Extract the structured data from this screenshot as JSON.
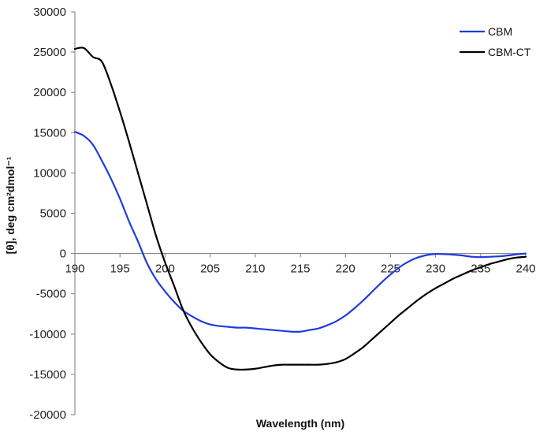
{
  "chart_data": {
    "type": "line",
    "xlabel": "Wavelength (nm)",
    "ylabel": "[θ], deg cm²dmol⁻¹",
    "xlim": [
      190,
      240
    ],
    "ylim": [
      -20000,
      30000
    ],
    "x_ticks": [
      "190",
      "195",
      "200",
      "205",
      "210",
      "215",
      "220",
      "225",
      "230",
      "235",
      "240"
    ],
    "y_ticks": [
      "30000",
      "25000",
      "20000",
      "15000",
      "10000",
      "5000",
      "0",
      "-5000",
      "-10000",
      "-15000",
      "-20000"
    ],
    "grid": false,
    "legend_position": "top-right",
    "series": [
      {
        "name": "CBM",
        "color": "#1f3be0",
        "points": [
          [
            190,
            15100
          ],
          [
            191,
            14600
          ],
          [
            192,
            13500
          ],
          [
            193,
            11500
          ],
          [
            194,
            9300
          ],
          [
            195,
            6800
          ],
          [
            196,
            4000
          ],
          [
            197,
            1500
          ],
          [
            198,
            -1200
          ],
          [
            199,
            -3200
          ],
          [
            200,
            -4700
          ],
          [
            201,
            -6000
          ],
          [
            202,
            -7100
          ],
          [
            203,
            -7800
          ],
          [
            204,
            -8400
          ],
          [
            205,
            -8800
          ],
          [
            206,
            -9000
          ],
          [
            207,
            -9100
          ],
          [
            208,
            -9200
          ],
          [
            209,
            -9200
          ],
          [
            210,
            -9300
          ],
          [
            211,
            -9400
          ],
          [
            212,
            -9500
          ],
          [
            213,
            -9600
          ],
          [
            214,
            -9700
          ],
          [
            215,
            -9700
          ],
          [
            216,
            -9500
          ],
          [
            217,
            -9300
          ],
          [
            218,
            -8900
          ],
          [
            219,
            -8400
          ],
          [
            220,
            -7700
          ],
          [
            221,
            -6800
          ],
          [
            222,
            -5800
          ],
          [
            223,
            -4700
          ],
          [
            224,
            -3600
          ],
          [
            225,
            -2600
          ],
          [
            226,
            -1700
          ],
          [
            227,
            -1000
          ],
          [
            228,
            -500
          ],
          [
            229,
            -200
          ],
          [
            230,
            -50
          ],
          [
            231,
            -80
          ],
          [
            232,
            -150
          ],
          [
            233,
            -250
          ],
          [
            234,
            -400
          ],
          [
            235,
            -450
          ],
          [
            236,
            -400
          ],
          [
            237,
            -350
          ],
          [
            238,
            -250
          ],
          [
            239,
            -100
          ],
          [
            240,
            0
          ]
        ]
      },
      {
        "name": "CBM-CT",
        "color": "#000000",
        "points": [
          [
            190,
            25400
          ],
          [
            191,
            25500
          ],
          [
            192,
            24400
          ],
          [
            193,
            23800
          ],
          [
            194,
            21000
          ],
          [
            195,
            17600
          ],
          [
            196,
            13900
          ],
          [
            197,
            10000
          ],
          [
            198,
            6100
          ],
          [
            199,
            2200
          ],
          [
            200,
            -1100
          ],
          [
            201,
            -4000
          ],
          [
            202,
            -7000
          ],
          [
            203,
            -9200
          ],
          [
            204,
            -11000
          ],
          [
            205,
            -12500
          ],
          [
            206,
            -13500
          ],
          [
            207,
            -14200
          ],
          [
            208,
            -14400
          ],
          [
            209,
            -14400
          ],
          [
            210,
            -14300
          ],
          [
            211,
            -14100
          ],
          [
            212,
            -13900
          ],
          [
            213,
            -13800
          ],
          [
            214,
            -13800
          ],
          [
            215,
            -13800
          ],
          [
            216,
            -13800
          ],
          [
            217,
            -13800
          ],
          [
            218,
            -13700
          ],
          [
            219,
            -13500
          ],
          [
            220,
            -13100
          ],
          [
            221,
            -12400
          ],
          [
            222,
            -11600
          ],
          [
            223,
            -10600
          ],
          [
            224,
            -9600
          ],
          [
            225,
            -8600
          ],
          [
            226,
            -7600
          ],
          [
            227,
            -6700
          ],
          [
            228,
            -5800
          ],
          [
            229,
            -5000
          ],
          [
            230,
            -4300
          ],
          [
            231,
            -3700
          ],
          [
            232,
            -3100
          ],
          [
            233,
            -2600
          ],
          [
            234,
            -2100
          ],
          [
            235,
            -1700
          ],
          [
            236,
            -1300
          ],
          [
            237,
            -1000
          ],
          [
            238,
            -700
          ],
          [
            239,
            -500
          ],
          [
            240,
            -400
          ]
        ]
      }
    ]
  }
}
